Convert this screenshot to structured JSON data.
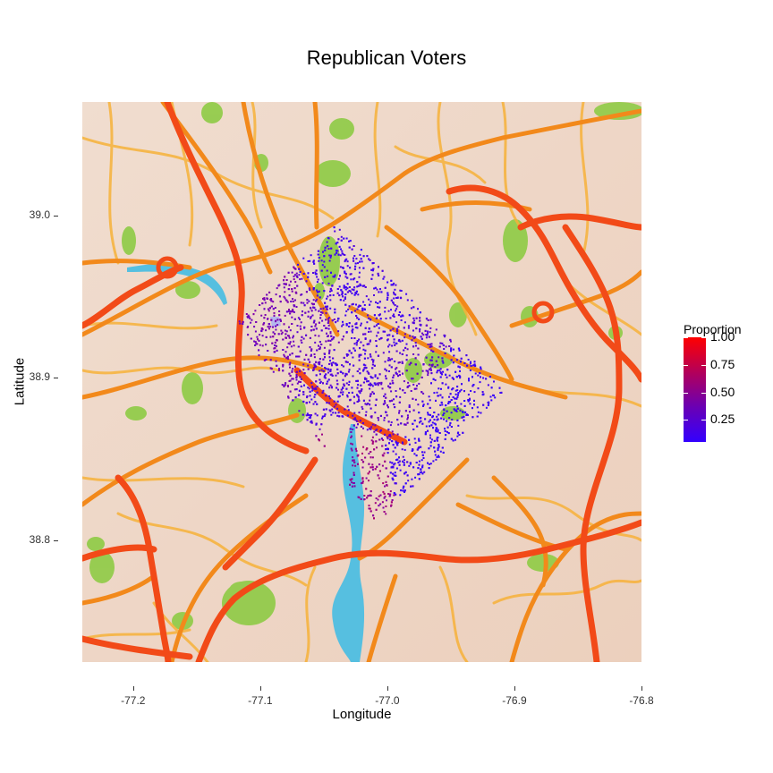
{
  "chart_data": {
    "type": "scatter",
    "title": "Republican Voters",
    "xlabel": "Longitude",
    "ylabel": "Latitude",
    "xlim": [
      -77.24,
      -76.8
    ],
    "ylim": [
      38.725,
      39.07
    ],
    "x_ticks": [
      "-77.2",
      "-77.1",
      "-77.0",
      "-76.9",
      "-76.8"
    ],
    "x_tick_values": [
      -77.2,
      -77.1,
      -77.0,
      -76.9,
      -76.8
    ],
    "y_ticks": [
      "38.8",
      "38.9",
      "39.0"
    ],
    "y_tick_values": [
      38.8,
      38.9,
      39.0
    ],
    "basemap": "watercolor street map",
    "region_corners": {
      "north": [
        -77.041,
        38.995
      ],
      "east": [
        -76.909,
        38.893
      ],
      "south": [
        -77.009,
        38.81
      ],
      "west": [
        -77.119,
        38.934
      ]
    },
    "clusters": [
      {
        "lon": -77.06,
        "lat": 38.935,
        "value": 0.35
      },
      {
        "lon": -77.085,
        "lat": 38.935,
        "value": 0.45
      },
      {
        "lon": -77.035,
        "lat": 38.95,
        "value": 0.15
      },
      {
        "lon": -77.02,
        "lat": 38.905,
        "value": 0.2
      },
      {
        "lon": -76.995,
        "lat": 38.89,
        "value": 0.3
      },
      {
        "lon": -76.96,
        "lat": 38.875,
        "value": 0.08
      },
      {
        "lon": -76.98,
        "lat": 38.84,
        "value": 0.1
      },
      {
        "lon": -77.015,
        "lat": 38.835,
        "value": 0.6
      }
    ],
    "legend": {
      "title": "Proportion",
      "placement": "right",
      "range": [
        0.05,
        1.0
      ],
      "ticks": [
        "1.00",
        "0.75",
        "0.50",
        "0.25"
      ],
      "tick_values": [
        1.0,
        0.75,
        0.5,
        0.25
      ],
      "colors": {
        "low": "#3300ff",
        "mid": "#8000aa",
        "high": "#ff0000"
      }
    }
  },
  "colors": {
    "land": "#eedccf",
    "park": "#8ecb45",
    "water": "#56bfe0",
    "highway": "#f24a18",
    "major_road": "#f2891b",
    "minor_road": "#f7b23a"
  }
}
